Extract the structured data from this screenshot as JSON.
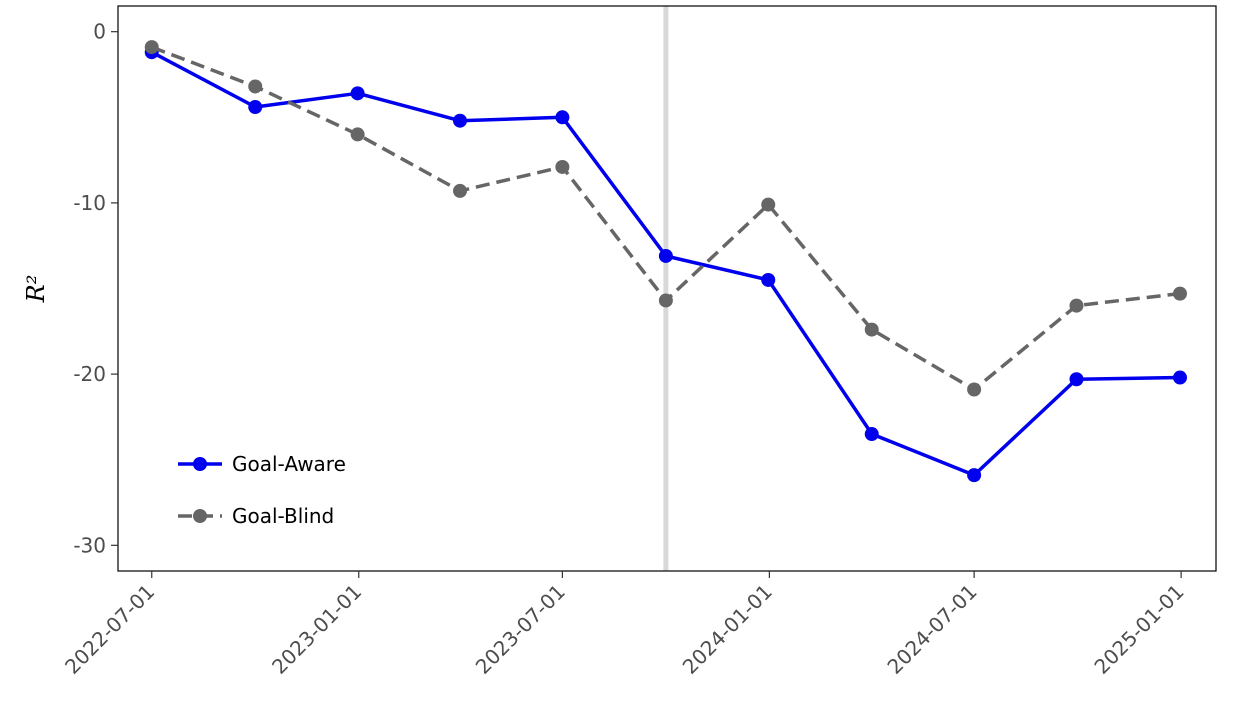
{
  "chart_data": {
    "type": "line",
    "title": "",
    "xlabel": "",
    "ylabel": "R²",
    "x": [
      "2022-07-01",
      "2022-10-01",
      "2022-12-31",
      "2023-04-01",
      "2023-07-01",
      "2023-10-01",
      "2023-12-31",
      "2024-04-01",
      "2024-07-01",
      "2024-09-30",
      "2024-12-31"
    ],
    "xticks": [
      "2022-07-01",
      "2023-01-01",
      "2023-07-01",
      "2024-01-01",
      "2024-07-01",
      "2025-01-01"
    ],
    "yticks": [
      0,
      -10,
      -20,
      -30
    ],
    "ylim": [
      -31.5,
      1.5
    ],
    "vline": {
      "x": "2023-10-01",
      "color": "#d9d9d9"
    },
    "grid": false,
    "legend_position": "bottom-left",
    "series": [
      {
        "name": "Goal-Aware",
        "color": "#0000ee",
        "dash": "solid",
        "values": [
          -1.2,
          -4.4,
          -3.6,
          -5.2,
          -5.0,
          -13.1,
          -14.5,
          -23.5,
          -25.9,
          -20.3,
          -20.2
        ]
      },
      {
        "name": "Goal-Blind",
        "color": "#666666",
        "dash": "dashed",
        "values": [
          -0.9,
          -3.2,
          -6.0,
          -9.3,
          -7.9,
          -15.7,
          -10.1,
          -17.4,
          -20.9,
          -16.0,
          -15.3
        ]
      }
    ]
  }
}
